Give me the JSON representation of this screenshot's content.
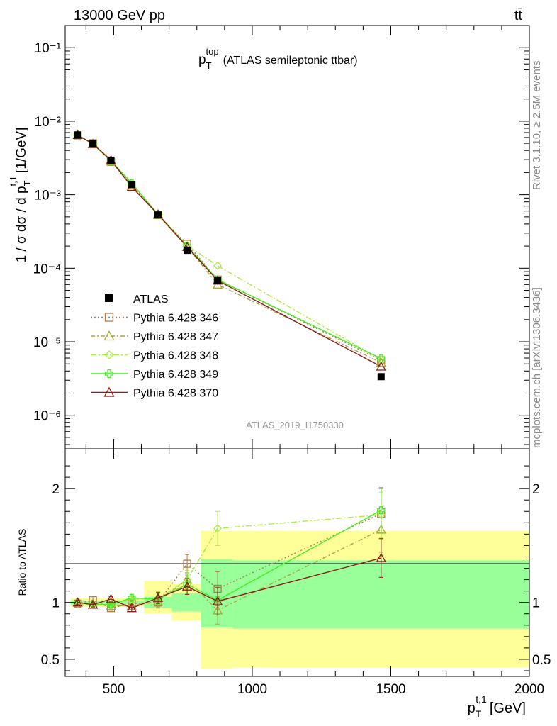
{
  "header": {
    "left": "13000 GeV pp",
    "right": "tt̄"
  },
  "side_labels": {
    "top": "Rivet 3.1.10, ≥ 2.5M events",
    "bottom": "mcplots.cern.ch [arXiv:1306.3436]"
  },
  "colors": {
    "atlas": "#000000",
    "p346": "#b07d4a",
    "p347": "#a8a838",
    "p348": "#aaee44",
    "p349": "#44ee22",
    "p370": "#8b1a1a",
    "band_inner": "#99ff99",
    "band_outer": "#ffff99"
  },
  "chart_data": [
    {
      "type": "line",
      "title": "p_T^top (ATLAS semileptonic ttbar)",
      "title_main": "p",
      "title_sub": "T",
      "title_sup": "top",
      "title_rest": "(ATLAS semileptonic ttbar)",
      "ylabel": "1 / σ dσ / d p_T^t,1 [1/GeV]",
      "ylabel_main": "1 / σ dσ / d p",
      "ylabel_sub": "T",
      "ylabel_sup": "t,1",
      "ylabel_unit": "[1/GeV]",
      "yscale": "log",
      "ylim": [
        3.5e-07,
        0.2
      ],
      "xlim": [
        325,
        2000
      ],
      "y_tick_labels": [
        "10⁻⁶",
        "10⁻⁵",
        "10⁻⁴",
        "10⁻³",
        "10⁻²",
        "10⁻¹"
      ],
      "analysis_label": "ATLAS_2019_I1750330",
      "legend_position": "center-left",
      "x": [
        370,
        425,
        490,
        565,
        660,
        765,
        875,
        1465
      ],
      "atlas": {
        "name": "ATLAS",
        "values": [
          0.0065,
          0.005,
          0.00295,
          0.00138,
          0.00053,
          0.000175,
          6.8e-05,
          3.35e-06
        ]
      },
      "series": [
        {
          "name": "Pythia 6.428 346",
          "color_key": "p346",
          "values": [
            0.0064,
            0.005,
            0.0028,
            0.00136,
            0.00053,
            0.000215,
            7e-05,
            5.6e-06
          ]
        },
        {
          "name": "Pythia 6.428 347",
          "color_key": "p347",
          "values": [
            0.0065,
            0.0049,
            0.00285,
            0.00134,
            0.00053,
            0.000195,
            6e-05,
            5.2e-06
          ]
        },
        {
          "name": "Pythia 6.428 348",
          "color_key": "p348",
          "values": [
            0.0064,
            0.0049,
            0.0029,
            0.00142,
            0.00054,
            0.000205,
            0.000108,
            5.7e-06
          ]
        },
        {
          "name": "Pythia 6.428 349",
          "color_key": "p349",
          "values": [
            0.0065,
            0.0049,
            0.0029,
            0.00144,
            0.00054,
            0.0002,
            7e-05,
            5.9e-06
          ]
        },
        {
          "name": "Pythia 6.428 370",
          "color_key": "p370",
          "values": [
            0.0065,
            0.0049,
            0.00295,
            0.00128,
            0.00054,
            0.000195,
            6.8e-05,
            4.6e-06
          ]
        }
      ]
    },
    {
      "type": "line",
      "ylabel": "Ratio to ATLAS",
      "xlabel": "p_T^t,1 [GeV]",
      "xlabel_main": "p",
      "xlabel_sub": "T",
      "xlabel_sup": "t,1",
      "xlabel_unit": "[GeV]",
      "xlim": [
        325,
        2000
      ],
      "ylim": [
        0.35,
        2.35
      ],
      "x_ticks": [
        500,
        1000,
        1500,
        2000
      ],
      "x_tick_labels": [
        "500",
        "1000",
        "1500",
        "2000"
      ],
      "y_ticks": [
        0.5,
        1,
        2
      ],
      "y_tick_labels": [
        "0.5",
        "1",
        "2"
      ],
      "bands": [
        {
          "x": [
            345,
            395
          ],
          "inner": [
            0.98,
            1.02
          ],
          "outer": [
            0.96,
            1.04
          ]
        },
        {
          "x": [
            395,
            455
          ],
          "inner": [
            0.985,
            1.015
          ],
          "outer": [
            0.965,
            1.035
          ]
        },
        {
          "x": [
            455,
            525
          ],
          "inner": [
            0.98,
            1.02
          ],
          "outer": [
            0.96,
            1.04
          ]
        },
        {
          "x": [
            525,
            610
          ],
          "inner": [
            0.985,
            1.015
          ],
          "outer": [
            0.965,
            1.035
          ]
        },
        {
          "x": [
            610,
            710
          ],
          "inner": [
            0.95,
            1.05
          ],
          "outer": [
            0.9,
            1.19
          ]
        },
        {
          "x": [
            710,
            815
          ],
          "inner": [
            0.92,
            1.08
          ],
          "outer": [
            0.84,
            1.16
          ]
        },
        {
          "x": [
            815,
            930
          ],
          "inner": [
            0.78,
            1.38
          ],
          "outer": [
            0.42,
            1.63
          ]
        },
        {
          "x": [
            930,
            2000
          ],
          "inner": [
            0.77,
            1.37
          ],
          "outer": [
            0.43,
            1.63
          ]
        }
      ],
      "series": [
        {
          "name": "Pythia 6.428 346",
          "color_key": "p346",
          "values": [
            0.99,
            1.02,
            0.95,
            0.99,
            1.0,
            1.34,
            1.12,
            1.78
          ],
          "err": [
            0.02,
            0.02,
            0.02,
            0.03,
            0.05,
            0.08,
            0.15,
            0.22
          ]
        },
        {
          "name": "Pythia 6.428 347",
          "color_key": "p347",
          "values": [
            1.0,
            0.98,
            0.97,
            0.97,
            1.01,
            1.2,
            0.93,
            1.64
          ],
          "err": [
            0.02,
            0.02,
            0.02,
            0.03,
            0.05,
            0.08,
            0.12,
            0.2
          ]
        },
        {
          "name": "Pythia 6.428 348",
          "color_key": "p348",
          "values": [
            0.99,
            0.98,
            0.98,
            1.03,
            1.03,
            1.2,
            1.65,
            1.77
          ],
          "err": [
            0.02,
            0.02,
            0.02,
            0.03,
            0.05,
            0.08,
            0.15,
            0.2
          ]
        },
        {
          "name": "Pythia 6.428 349",
          "color_key": "p349",
          "values": [
            1.0,
            0.98,
            0.98,
            1.04,
            1.03,
            1.16,
            1.02,
            1.81
          ],
          "err": [
            0.02,
            0.02,
            0.02,
            0.03,
            0.05,
            0.08,
            0.12,
            0.2
          ]
        },
        {
          "name": "Pythia 6.428 370",
          "color_key": "p370",
          "values": [
            1.0,
            0.98,
            1.03,
            0.95,
            1.04,
            1.14,
            1.01,
            1.39
          ],
          "err": [
            0.02,
            0.02,
            0.02,
            0.03,
            0.05,
            0.07,
            0.12,
            0.17
          ]
        }
      ]
    }
  ]
}
